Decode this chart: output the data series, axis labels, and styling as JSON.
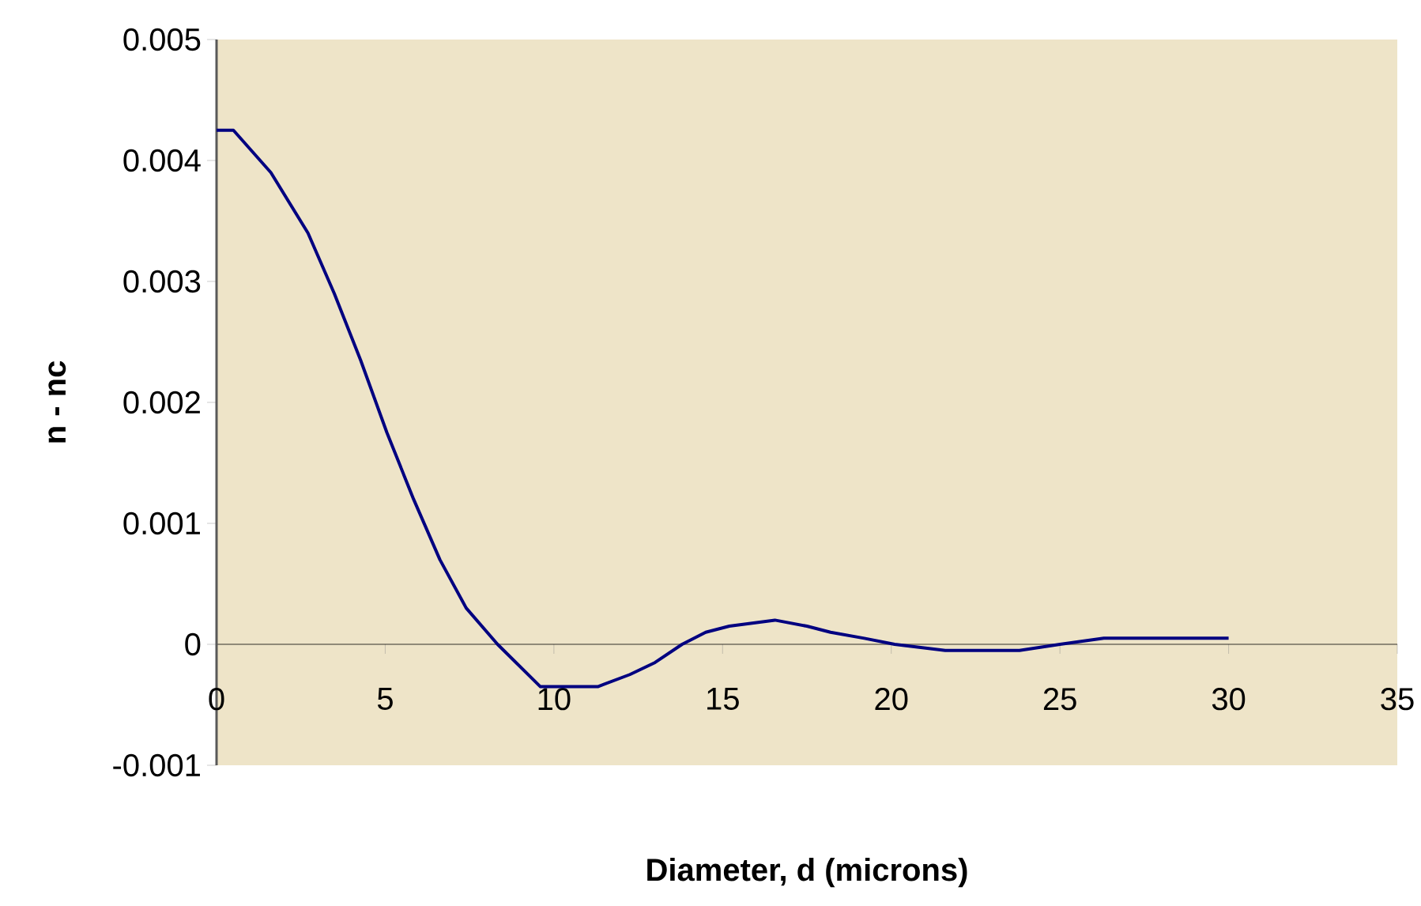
{
  "chart_data": {
    "type": "line",
    "xlabel": "Diameter, d (microns)",
    "ylabel": "n - nc",
    "x": [
      0,
      0.5,
      1.61,
      2.71,
      3.49,
      4.27,
      5.05,
      5.84,
      6.62,
      7.4,
      8.33,
      9.6,
      10.5,
      11.3,
      12.25,
      13.0,
      13.8,
      14.5,
      15.2,
      16.55,
      17.5,
      18.2,
      19.2,
      20.1,
      21.6,
      23.8,
      25,
      26.3,
      30
    ],
    "values": [
      0.00425,
      0.00425,
      0.0039,
      0.0034,
      0.0029,
      0.00235,
      0.00175,
      0.0012,
      0.0007,
      0.0003,
      0,
      -0.00035,
      -0.00035,
      -0.00035,
      -0.00025,
      -0.00015,
      0,
      0.0001,
      0.00015,
      0.0002,
      0.00015,
      0.0001,
      5e-05,
      0,
      -5e-05,
      -5e-05,
      0,
      5e-05,
      5e-05
    ],
    "color": "#000080",
    "marker": "none",
    "line_style": "solid",
    "xlim": [
      0,
      35
    ],
    "ylim": [
      -0.001,
      0.005
    ],
    "xticks": [
      0,
      5,
      10,
      15,
      20,
      25,
      30,
      35
    ],
    "yticks": [
      -0.001,
      0,
      0.001,
      0.002,
      0.003,
      0.004,
      0.005
    ]
  }
}
